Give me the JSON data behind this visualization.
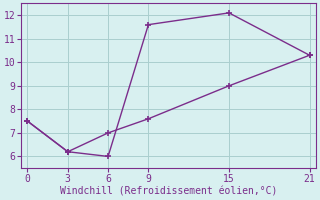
{
  "line1_x": [
    0,
    3,
    6,
    9,
    15,
    21
  ],
  "line1_y": [
    7.5,
    6.2,
    6.0,
    11.6,
    12.1,
    10.3
  ],
  "line2_x": [
    0,
    3,
    6,
    9,
    15,
    21
  ],
  "line2_y": [
    7.5,
    6.2,
    7.0,
    7.6,
    9.0,
    10.3
  ],
  "color": "#7B2D8B",
  "bg_color": "#d8f0f0",
  "grid_color": "#aacece",
  "xlabel": "Windchill (Refroidissement éolien,°C)",
  "xlabel_color": "#7B2D8B",
  "tick_color": "#7B2D8B",
  "xlim": [
    -0.5,
    21.5
  ],
  "ylim": [
    5.5,
    12.5
  ],
  "xticks": [
    0,
    3,
    6,
    9,
    15,
    21
  ],
  "yticks": [
    6,
    7,
    8,
    9,
    10,
    11,
    12
  ],
  "marker": "+",
  "linewidth": 1.0,
  "markersize": 5,
  "tick_fontsize": 7,
  "xlabel_fontsize": 7
}
